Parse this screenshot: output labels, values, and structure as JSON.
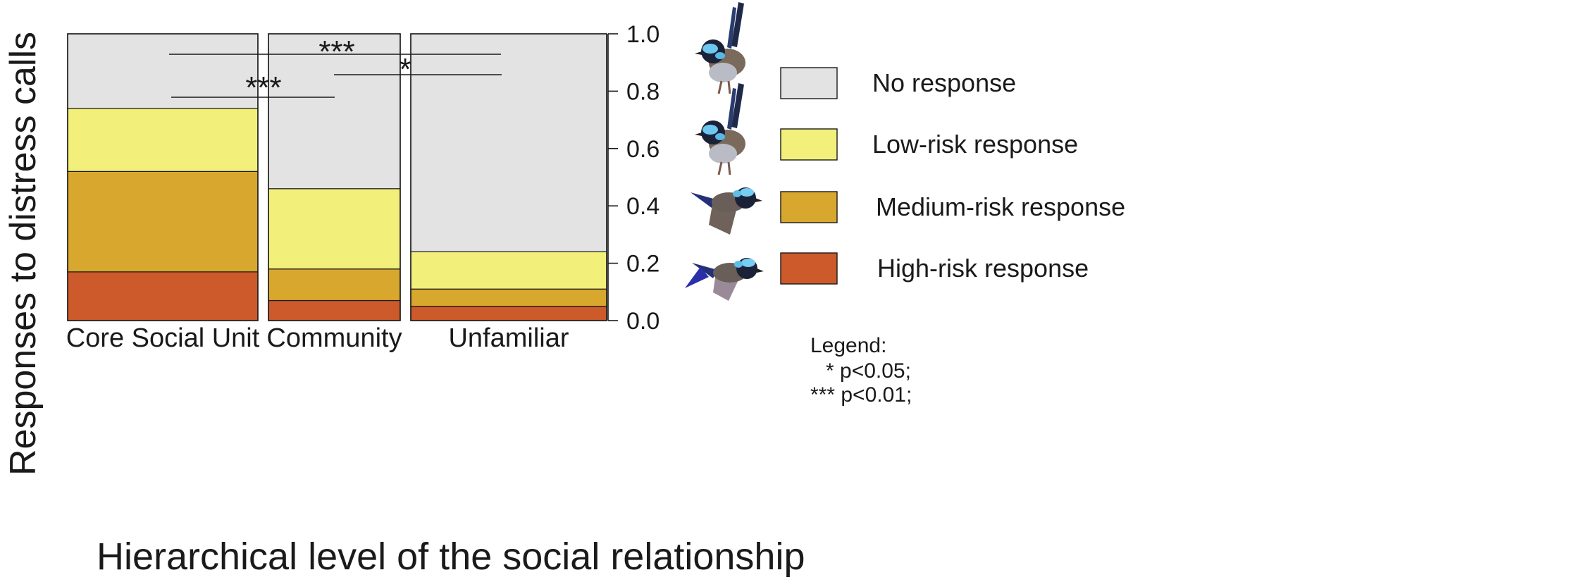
{
  "chart_data": {
    "type": "bar",
    "stacked": true,
    "variable_width": true,
    "ylabel": "Responses to distress calls",
    "xlabel": "Hierarchical level of the social relationship",
    "ylim": [
      0,
      1
    ],
    "y_ticks": [
      "0.0",
      "0.2",
      "0.4",
      "0.6",
      "0.8",
      "1.0"
    ],
    "y_tick_values": [
      0,
      0.2,
      0.4,
      0.6,
      0.8,
      1.0
    ],
    "y_axis_side": "right",
    "categories": [
      "Core Social Unit",
      "Community",
      "Unfamiliar"
    ],
    "series": [
      {
        "name": "High-risk response",
        "color": "#cc5a2a",
        "values": [
          0.17,
          0.07,
          0.05
        ]
      },
      {
        "name": "Medium-risk response",
        "color": "#d8a72e",
        "values": [
          0.35,
          0.11,
          0.06
        ]
      },
      {
        "name": "Low-risk response",
        "color": "#f2f07b",
        "values": [
          0.22,
          0.28,
          0.13
        ]
      },
      {
        "name": "No response",
        "color": "#e3e3e3",
        "values": [
          0.26,
          0.54,
          0.76
        ]
      }
    ],
    "legend": {
      "placement": "right",
      "order": [
        "No response",
        "Low-risk response",
        "Medium-risk response",
        "High-risk response"
      ]
    },
    "annotations": {
      "significance": [
        {
          "from": "Core Social Unit",
          "to": "Unfamiliar",
          "label": "***"
        },
        {
          "from": "Community",
          "to": "Unfamiliar",
          "label": "*"
        },
        {
          "from": "Core Social Unit",
          "to": "Community",
          "label": "***"
        }
      ],
      "significance_legend": {
        "title": "Legend:",
        "items": [
          "* p<0.05;",
          "*** p<0.01;"
        ]
      }
    },
    "bird_icons": [
      "perched-fairywren-icon",
      "perched-fairywren-icon",
      "flying-fairywren-icon",
      "flying-fairywren-icon"
    ]
  }
}
